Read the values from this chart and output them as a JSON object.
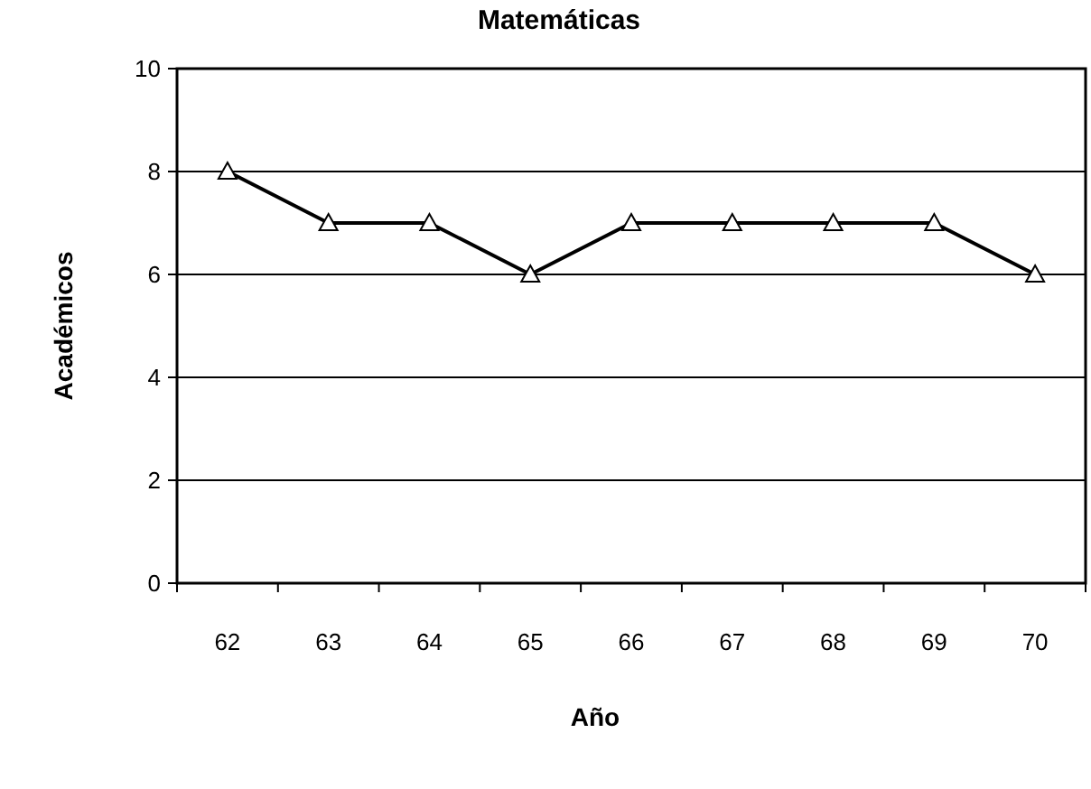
{
  "chart_data": {
    "type": "line",
    "title": "Matemáticas",
    "xlabel": "Año",
    "ylabel": "Académicos",
    "categories": [
      "62",
      "63",
      "64",
      "65",
      "66",
      "67",
      "68",
      "69",
      "70"
    ],
    "series": [
      {
        "color": "#000000",
        "values": [
          8,
          7,
          7,
          6,
          7,
          7,
          7,
          7,
          6
        ]
      }
    ],
    "ylim": [
      0,
      10
    ],
    "yticks": [
      0,
      2,
      4,
      6,
      8,
      10
    ],
    "grid": "y",
    "marker": "triangle",
    "line_style": "solid"
  }
}
